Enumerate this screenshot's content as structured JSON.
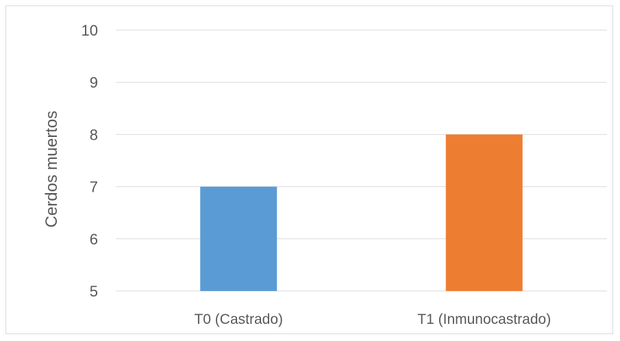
{
  "chart_data": {
    "type": "bar",
    "title": "",
    "xlabel": "",
    "ylabel": "Cerdos muertos",
    "categories": [
      "T0 (Castrado)",
      "T1 (Inmunocastrado)"
    ],
    "values": [
      7,
      8
    ],
    "bar_colors": [
      "#5b9bd5",
      "#ed7d31"
    ],
    "ylim": [
      5,
      10
    ],
    "yticks": [
      5,
      6,
      7,
      8,
      9,
      10
    ],
    "grid": true,
    "legend": "none",
    "gridline_color": "#d9d9d9",
    "text_color": "#595959"
  }
}
